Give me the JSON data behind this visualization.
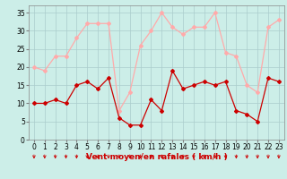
{
  "x": [
    0,
    1,
    2,
    3,
    4,
    5,
    6,
    7,
    8,
    9,
    10,
    11,
    12,
    13,
    14,
    15,
    16,
    17,
    18,
    19,
    20,
    21,
    22,
    23
  ],
  "wind_mean": [
    10,
    10,
    11,
    10,
    15,
    16,
    14,
    17,
    6,
    4,
    4,
    11,
    8,
    19,
    14,
    15,
    16,
    15,
    16,
    8,
    7,
    5,
    17,
    16
  ],
  "wind_gust": [
    20,
    19,
    23,
    23,
    28,
    32,
    32,
    32,
    8,
    13,
    26,
    30,
    35,
    31,
    29,
    31,
    31,
    35,
    24,
    23,
    15,
    13,
    31,
    33
  ],
  "mean_color": "#cc0000",
  "gust_color": "#ffaaaa",
  "bg_color": "#cceee8",
  "grid_color": "#aacccc",
  "xlabel": "Vent moyen/en rafales ( km/h )",
  "xlim": [
    -0.5,
    23.5
  ],
  "ylim": [
    0,
    37
  ],
  "yticks": [
    0,
    5,
    10,
    15,
    20,
    25,
    30,
    35
  ],
  "xticks": [
    0,
    1,
    2,
    3,
    4,
    5,
    6,
    7,
    8,
    9,
    10,
    11,
    12,
    13,
    14,
    15,
    16,
    17,
    18,
    19,
    20,
    21,
    22,
    23
  ],
  "label_fontsize": 6.5,
  "tick_fontsize": 5.5
}
